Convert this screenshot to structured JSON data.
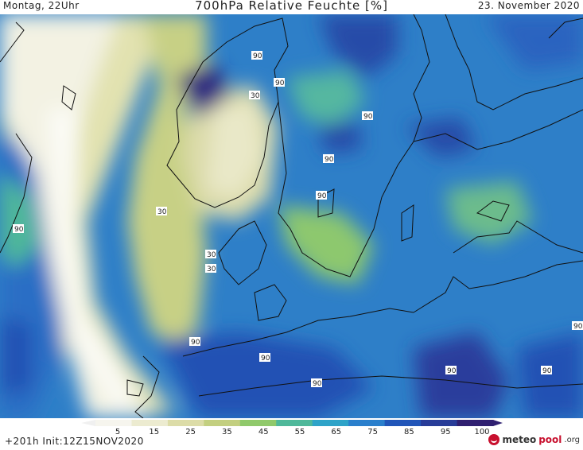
{
  "header": {
    "time_label": "Montag, 22Uhr",
    "title": "700hPa Relative Feuchte [%]",
    "date_label": "23. November 2020"
  },
  "map": {
    "contour_labels": [
      "90",
      "90",
      "30",
      "90",
      "90",
      "90",
      "30",
      "90",
      "30",
      "30",
      "90",
      "90",
      "90",
      "90",
      "90",
      "90"
    ]
  },
  "colorbar": {
    "ticks": [
      "5",
      "15",
      "25",
      "35",
      "45",
      "55",
      "65",
      "75",
      "85",
      "95",
      "100"
    ],
    "colors": [
      "#f6f5ee",
      "#ecebd0",
      "#dcdca8",
      "#c3cf80",
      "#90c96b",
      "#4fb89a",
      "#2ea3c8",
      "#2a7fcc",
      "#2155b8",
      "#283c98",
      "#2f1f70"
    ]
  },
  "footer": {
    "init_text": "+201h  Init:12Z15NOV2020",
    "logo_meteo": "meteo",
    "logo_pool": "pool",
    "logo_org": ".org"
  }
}
